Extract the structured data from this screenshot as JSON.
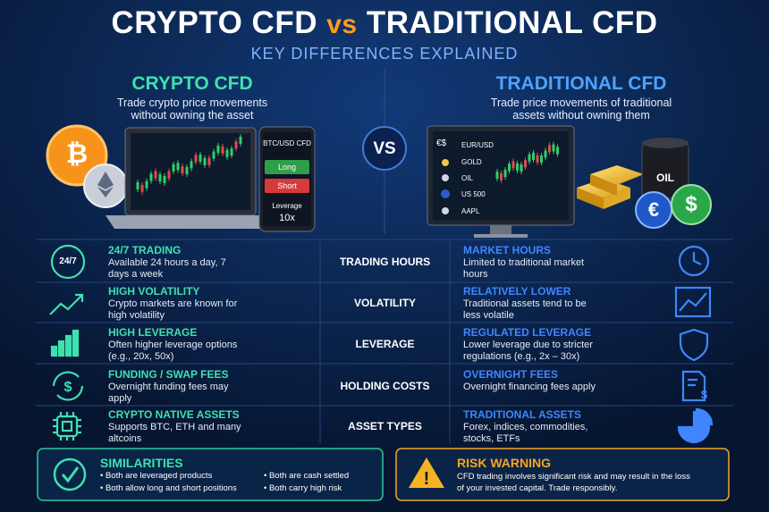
{
  "header": {
    "title_left": "CRYPTO CFD",
    "title_vs": "vs",
    "title_right": "TRADITIONAL CFD",
    "subtitle": "KEY DIFFERENCES EXPLAINED"
  },
  "crypto": {
    "title": "CRYPTO CFD",
    "description": "Trade crypto price movements without owning the asset",
    "phone": {
      "pair": "BTC/USD CFD",
      "long": "Long",
      "short": "Short",
      "leverage_label": "Leverage",
      "leverage_value": "10x"
    }
  },
  "vs": "VS",
  "traditional": {
    "title": "TRADITIONAL CFD",
    "description": "Trade price movements of traditional assets without owning them",
    "monitor": {
      "icon_text": "€$",
      "assets": [
        "EUR/USD",
        "GOLD",
        "OIL",
        "US 500",
        "AAPL"
      ]
    },
    "barrel_label": "OIL",
    "coins": [
      "€",
      "$"
    ]
  },
  "rows": [
    {
      "icon_text": "24/7",
      "crypto_title": "24/7 TRADING",
      "crypto_text": "Available 24 hours a day, 7 days a week",
      "label": "TRADING HOURS",
      "trad_title": "MARKET HOURS",
      "trad_text": "Limited to traditional market hours"
    },
    {
      "crypto_title": "HIGH VOLATILITY",
      "crypto_text": "Crypto markets are known for high volatility",
      "label": "VOLATILITY",
      "trad_title": "RELATIVELY LOWER",
      "trad_text": "Traditional assets tend to be less volatile"
    },
    {
      "crypto_title": "HIGH LEVERAGE",
      "crypto_text": "Often higher leverage options (e.g., 20x, 50x)",
      "label": "LEVERAGE",
      "trad_title": "REGULATED LEVERAGE",
      "trad_text": "Lower leverage due to stricter regulations (e.g., 2x – 30x)"
    },
    {
      "crypto_title": "FUNDING / SWAP FEES",
      "crypto_text": "Overnight funding fees may apply",
      "label": "HOLDING COSTS",
      "trad_title": "OVERNIGHT FEES",
      "trad_text": "Overnight financing fees apply"
    },
    {
      "crypto_title": "CRYPTO NATIVE ASSETS",
      "crypto_text": "Supports BTC, ETH and many altcoins",
      "label": "ASSET TYPES",
      "trad_title": "TRADITIONAL ASSETS",
      "trad_text": "Forex, indices, commodities, stocks, ETFs"
    }
  ],
  "similarities": {
    "title": "SIMILARITIES",
    "items": [
      "Both are leveraged products",
      "Both allow long and short positions",
      "Both are cash settled",
      "Both carry high risk"
    ]
  },
  "risk": {
    "title": "RISK WARNING",
    "text": "CFD trading involves significant risk and may result in the loss of your invested capital. Trade responsibly."
  }
}
